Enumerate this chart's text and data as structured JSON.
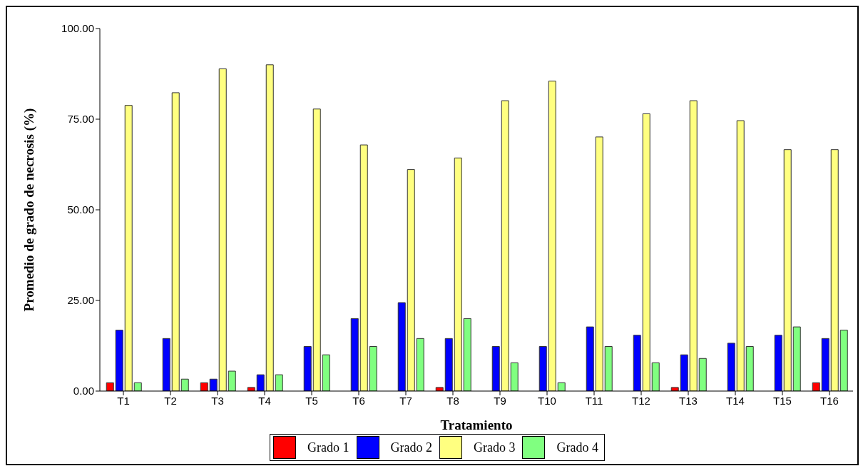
{
  "chart_data": {
    "type": "bar",
    "xlabel": "Tratamiento",
    "ylabel": "Promedio de grado de necrosis (%)",
    "categories": [
      "T1",
      "T2",
      "T3",
      "T4",
      "T5",
      "T6",
      "T7",
      "T8",
      "T9",
      "T10",
      "T11",
      "T12",
      "T13",
      "T14",
      "T15",
      "T16"
    ],
    "series": [
      {
        "name": "Grado 1",
        "color": "#ff0000",
        "values": [
          2.3,
          0,
          2.3,
          1.0,
          0,
          0,
          0,
          1.0,
          0,
          0,
          0,
          0,
          1.0,
          0,
          0,
          2.3
        ]
      },
      {
        "name": "Grado 2",
        "color": "#0000ff",
        "values": [
          16.8,
          14.5,
          3.3,
          4.5,
          12.3,
          20.0,
          24.4,
          14.5,
          12.3,
          12.3,
          17.7,
          15.4,
          10.0,
          13.2,
          15.4,
          14.5
        ]
      },
      {
        "name": "Grado 3",
        "color": "#ffff80",
        "values": [
          78.8,
          82.3,
          88.9,
          90.0,
          77.8,
          67.9,
          61.1,
          64.3,
          80.1,
          85.5,
          70.1,
          76.5,
          80.1,
          74.6,
          66.6,
          66.6
        ]
      },
      {
        "name": "Grado 4",
        "color": "#80ff80",
        "values": [
          2.3,
          3.3,
          5.5,
          4.5,
          10.0,
          12.3,
          14.5,
          20.0,
          7.8,
          2.3,
          12.3,
          7.8,
          9.0,
          12.3,
          17.7,
          16.8
        ]
      }
    ],
    "ylim": [
      0,
      100
    ],
    "yticks": [
      {
        "value": 0,
        "label": "0.00"
      },
      {
        "value": 25,
        "label": "25.00"
      },
      {
        "value": 50,
        "label": "50.00"
      },
      {
        "value": 75,
        "label": "75.00"
      },
      {
        "value": 100,
        "label": "100.00"
      }
    ],
    "grid": false,
    "legend": "bottom"
  }
}
